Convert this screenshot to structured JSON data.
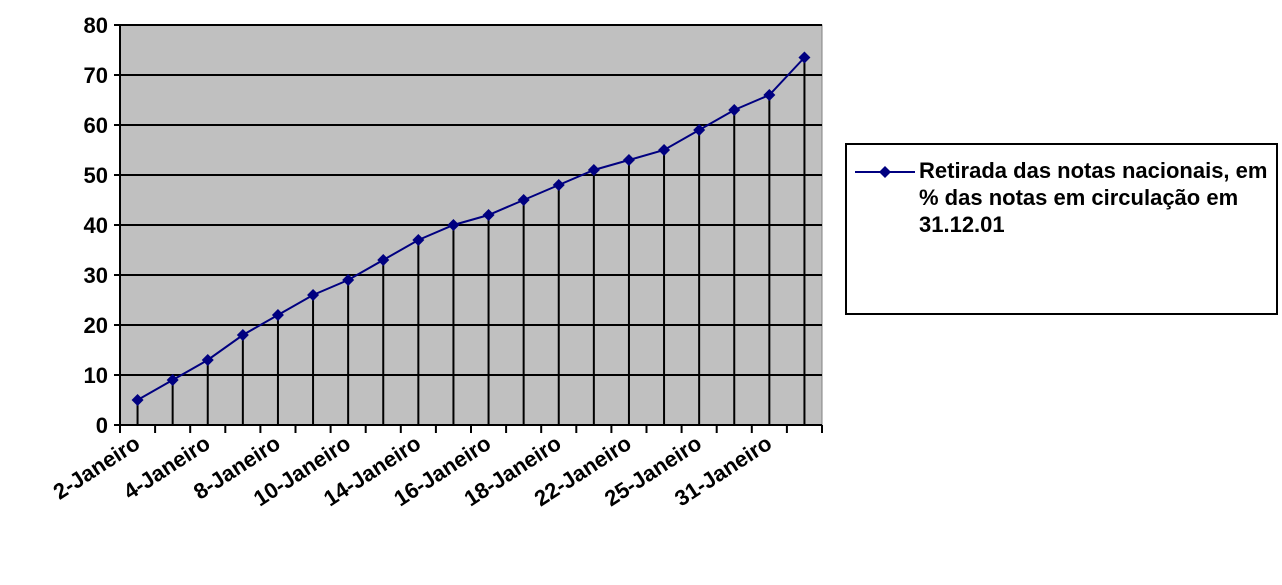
{
  "chart_data": {
    "type": "line",
    "categories": [
      "2-Janeiro",
      null,
      "4-Janeiro",
      null,
      "8-Janeiro",
      null,
      "10-Janeiro",
      null,
      "14-Janeiro",
      null,
      "16-Janeiro",
      null,
      "18-Janeiro",
      null,
      "22-Janeiro",
      null,
      "25-Janeiro",
      null,
      "31-Janeiro",
      null
    ],
    "series": [
      {
        "name": "Retirada das notas nacionais, em % das notas em circulação em 31.12.01",
        "color": "#000080",
        "values": [
          5,
          9,
          13,
          18,
          22,
          26,
          29,
          33,
          37,
          40,
          42,
          45,
          48,
          51,
          53,
          55,
          59,
          63,
          66,
          73.5
        ]
      }
    ],
    "ylim": [
      0,
      80
    ],
    "yticks": [
      0,
      10,
      20,
      30,
      40,
      50,
      60,
      70,
      80
    ],
    "grid": true,
    "drop_lines": true,
    "plot_background": "#c0c0c0",
    "legend": "right"
  }
}
